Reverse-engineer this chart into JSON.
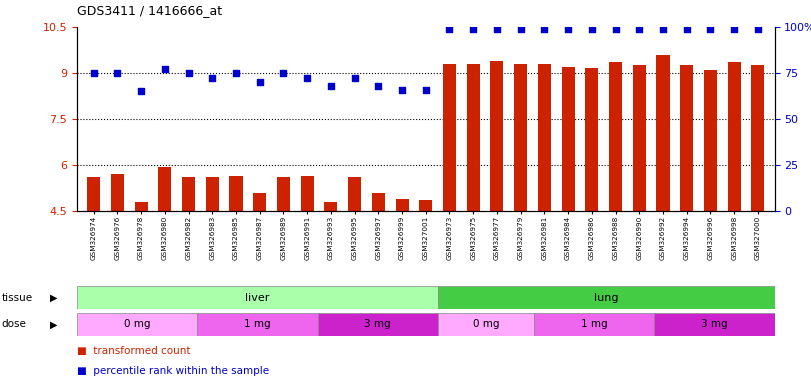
{
  "title": "GDS3411 / 1416666_at",
  "samples": [
    "GSM326974",
    "GSM326976",
    "GSM326978",
    "GSM326980",
    "GSM326982",
    "GSM326983",
    "GSM326985",
    "GSM326987",
    "GSM326989",
    "GSM326991",
    "GSM326993",
    "GSM326995",
    "GSM326997",
    "GSM326999",
    "GSM327001",
    "GSM326973",
    "GSM326975",
    "GSM326977",
    "GSM326979",
    "GSM326981",
    "GSM326984",
    "GSM326986",
    "GSM326988",
    "GSM326990",
    "GSM326992",
    "GSM326994",
    "GSM326996",
    "GSM326998",
    "GSM327000"
  ],
  "bar_values": [
    5.6,
    5.7,
    4.8,
    5.95,
    5.6,
    5.6,
    5.65,
    5.1,
    5.6,
    5.65,
    4.8,
    5.6,
    5.1,
    4.9,
    4.85,
    9.3,
    9.3,
    9.4,
    9.3,
    9.3,
    9.2,
    9.15,
    9.35,
    9.25,
    9.6,
    9.25,
    9.1,
    9.35,
    9.25
  ],
  "dot_values_right": [
    75,
    75,
    65,
    77,
    75,
    72,
    75,
    70,
    75,
    72,
    68,
    72,
    68,
    66,
    66,
    99,
    99,
    99,
    99,
    99,
    99,
    99,
    99,
    99,
    99,
    99,
    99,
    99,
    99
  ],
  "bar_color": "#cc2200",
  "dot_color": "#0000cc",
  "ylim_left": [
    4.5,
    10.5
  ],
  "ylim_right": [
    0,
    100
  ],
  "yticks_left": [
    4.5,
    6.0,
    7.5,
    9.0,
    10.5
  ],
  "ytick_labels_left": [
    "4.5",
    "6",
    "7.5",
    "9",
    "10.5"
  ],
  "yticks_right": [
    0,
    25,
    50,
    75,
    100
  ],
  "ytick_labels_right": [
    "0",
    "25",
    "50",
    "75",
    "100%"
  ],
  "hlines": [
    6.0,
    7.5,
    9.0
  ],
  "tissue_liver_count": 15,
  "tissue_lung_count": 14,
  "tissue_liver_color": "#aaffaa",
  "tissue_lung_color": "#44cc44",
  "dose_colors": [
    "#ffaaff",
    "#ee66ee",
    "#cc22cc"
  ],
  "dose_liver_labels": [
    "0 mg",
    "1 mg",
    "3 mg"
  ],
  "dose_lung_labels": [
    "0 mg",
    "1 mg",
    "3 mg"
  ],
  "dose_liver_counts": [
    5,
    5,
    5
  ],
  "dose_lung_counts": [
    4,
    5,
    5
  ],
  "legend_bar_label": "transformed count",
  "legend_dot_label": "percentile rank within the sample",
  "bg_color": "#ffffff",
  "title_color": "#000000",
  "left_label_color": "#cc2200",
  "right_label_color": "#0000cc"
}
